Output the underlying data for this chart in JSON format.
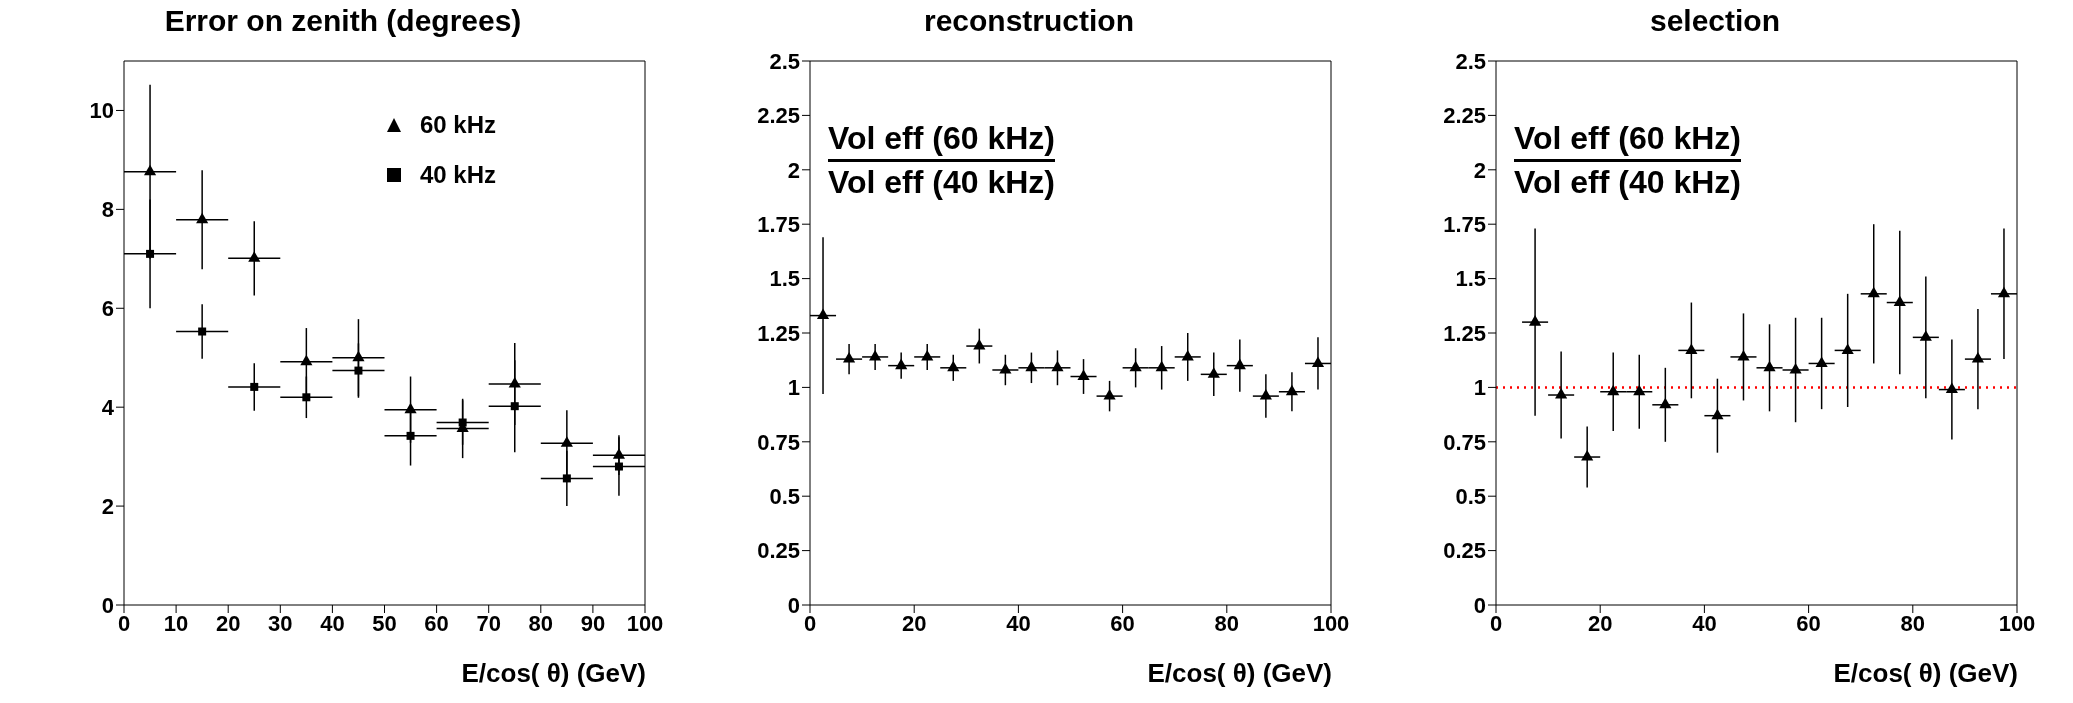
{
  "chart_data": [
    {
      "type": "scatter",
      "title": "Error on zenith (degrees)",
      "xlabel": "E/cos( θ) (GeV)",
      "xlim": [
        0,
        100
      ],
      "xticks": [
        0,
        10,
        20,
        30,
        40,
        50,
        60,
        70,
        80,
        90,
        100
      ],
      "ylim": [
        0,
        11
      ],
      "yticks": [
        0,
        2,
        4,
        6,
        8,
        10
      ],
      "legend": "top right",
      "x": [
        5,
        15,
        25,
        35,
        45,
        55,
        65,
        75,
        85,
        95
      ],
      "series": [
        {
          "name": "60 kHz",
          "color": "#000000",
          "marker": "triangle",
          "values": [
            8.76,
            7.79,
            7.01,
            4.92,
            5.0,
            3.95,
            3.57,
            4.47,
            3.27,
            3.03
          ],
          "errors": [
            1.76,
            1.0,
            0.75,
            0.68,
            0.78,
            0.67,
            0.6,
            0.83,
            0.67,
            0.4
          ],
          "xerrors": [
            5,
            5,
            5,
            5,
            5,
            5,
            5,
            5,
            5,
            5
          ]
        },
        {
          "name": "40 kHz",
          "color": "#000000",
          "marker": "square",
          "values": [
            7.1,
            5.53,
            4.41,
            4.2,
            4.74,
            3.42,
            3.69,
            4.02,
            2.56,
            2.8
          ],
          "errors": [
            1.1,
            0.55,
            0.48,
            0.42,
            0.55,
            0.6,
            0.45,
            0.93,
            0.56,
            0.59
          ],
          "xerrors": [
            5,
            5,
            5,
            5,
            5,
            5,
            5,
            5,
            5,
            5
          ]
        }
      ]
    },
    {
      "type": "scatter",
      "title": "reconstruction",
      "xlabel": "E/cos( θ) (GeV)",
      "xlim": [
        0,
        100
      ],
      "xticks": [
        0,
        20,
        40,
        60,
        80,
        100
      ],
      "ylim": [
        0,
        2.5
      ],
      "yticks": [
        0,
        0.25,
        0.5,
        0.75,
        1,
        1.25,
        1.5,
        1.75,
        2,
        2.25,
        2.5
      ],
      "annotations": [
        "Vol eff (60 kHz)",
        "Vol eff (40 kHz)"
      ],
      "x": [
        2.5,
        7.5,
        12.5,
        17.5,
        22.5,
        27.5,
        32.5,
        37.5,
        42.5,
        47.5,
        52.5,
        57.5,
        62.5,
        67.5,
        72.5,
        77.5,
        82.5,
        87.5,
        92.5,
        97.5
      ],
      "series": [
        {
          "color": "#000000",
          "marker": "triangle",
          "values": [
            1.33,
            1.13,
            1.14,
            1.1,
            1.14,
            1.09,
            1.19,
            1.08,
            1.09,
            1.09,
            1.05,
            0.96,
            1.09,
            1.09,
            1.14,
            1.06,
            1.1,
            0.96,
            0.98,
            1.11
          ],
          "errors": [
            0.36,
            0.07,
            0.06,
            0.06,
            0.06,
            0.06,
            0.08,
            0.07,
            0.07,
            0.08,
            0.08,
            0.07,
            0.09,
            0.1,
            0.11,
            0.1,
            0.12,
            0.1,
            0.09,
            0.12
          ],
          "xerrors": [
            2.5,
            2.5,
            2.5,
            2.5,
            2.5,
            2.5,
            2.5,
            2.5,
            2.5,
            2.5,
            2.5,
            2.5,
            2.5,
            2.5,
            2.5,
            2.5,
            2.5,
            2.5,
            2.5,
            2.5
          ]
        }
      ]
    },
    {
      "type": "scatter",
      "title": "selection",
      "xlabel": "E/cos( θ) (GeV)",
      "xlim": [
        0,
        100
      ],
      "xticks": [
        0,
        20,
        40,
        60,
        80,
        100
      ],
      "ylim": [
        0,
        2.5
      ],
      "yticks": [
        0,
        0.25,
        0.5,
        0.75,
        1,
        1.25,
        1.5,
        1.75,
        2,
        2.25,
        2.5
      ],
      "annotations": [
        "Vol eff (60 kHz)",
        "Vol eff (40 kHz)"
      ],
      "ref_lines": [
        {
          "axis": "y",
          "value": 1,
          "color": "#ff0000",
          "line_style": "dotted"
        }
      ],
      "x": [
        7.5,
        12.5,
        17.5,
        22.5,
        27.5,
        32.5,
        37.5,
        42.5,
        47.5,
        52.5,
        57.5,
        62.5,
        67.5,
        72.5,
        77.5,
        82.5,
        87.5,
        92.5,
        97.5
      ],
      "series": [
        {
          "color": "#000000",
          "marker": "triangle",
          "values": [
            1.3,
            0.965,
            0.68,
            0.98,
            0.98,
            0.92,
            1.17,
            0.87,
            1.14,
            1.09,
            1.08,
            1.11,
            1.17,
            1.43,
            1.39,
            1.23,
            0.99,
            1.13,
            1.43
          ],
          "errors": [
            0.43,
            0.2,
            0.14,
            0.18,
            0.17,
            0.17,
            0.22,
            0.17,
            0.2,
            0.2,
            0.24,
            0.21,
            0.26,
            0.32,
            0.33,
            0.28,
            0.23,
            0.23,
            0.3
          ],
          "xerrors": [
            2.5,
            2.5,
            2.5,
            2.5,
            2.5,
            2.5,
            2.5,
            2.5,
            2.5,
            2.5,
            2.5,
            2.5,
            2.5,
            2.5,
            2.5,
            2.5,
            2.5,
            2.5,
            2.5
          ]
        }
      ]
    }
  ]
}
